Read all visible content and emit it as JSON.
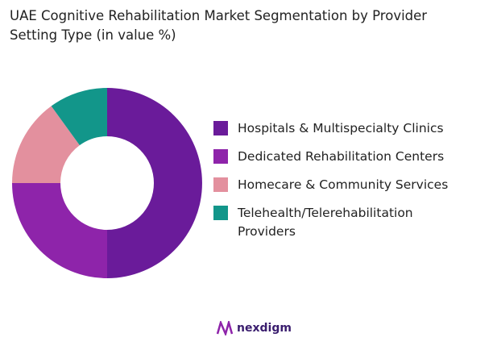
{
  "chart_data": {
    "type": "donut",
    "title": "UAE Cognitive Rehabilitation Market  Segmentation by Provider Setting Type (in value %)",
    "categories": [
      "Hospitals & Multispecialty Clinics",
      "Dedicated Rehabilitation Centers",
      "Homecare & Community Services",
      "Telehealth/Telerehabilitation Providers"
    ],
    "values": [
      50,
      25,
      15,
      10
    ],
    "colors": [
      "#6a1b9a",
      "#8e24aa",
      "#e3909e",
      "#12968a"
    ],
    "brand": "nexdigm"
  }
}
